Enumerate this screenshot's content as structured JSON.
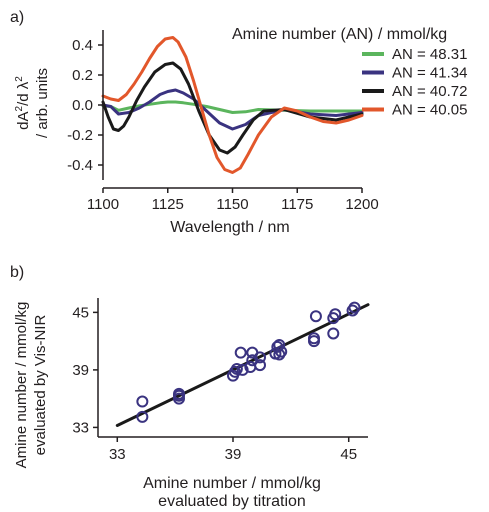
{
  "chart_data": [
    {
      "panel_label": "a)",
      "type": "line",
      "xlabel": "Wavelength / nm",
      "ylabel_line1": "dA",
      "ylabel_line1_sup1": "2",
      "ylabel_line1_mid": "/d λ",
      "ylabel_line1_sup2": "2",
      "ylabel_line2": "/ arb. units",
      "xlim": [
        1100,
        1200
      ],
      "ylim": [
        -0.5,
        0.5
      ],
      "xticks": [
        1100,
        1125,
        1150,
        1175,
        1200
      ],
      "yticks": [
        -0.4,
        -0.2,
        0.0,
        0.2,
        0.4
      ],
      "ytick_labels": [
        "-0.4",
        "-0.2",
        "0.0",
        "0.2",
        "0.4"
      ],
      "grid": false,
      "legend_title": "Amine number (AN) / mmol/kg",
      "legend_position": "top-right",
      "series": [
        {
          "name": "AN = 48.31",
          "color": "#5bb55d",
          "x": [
            1100,
            1103,
            1106,
            1110,
            1114,
            1118,
            1122,
            1125,
            1128,
            1131,
            1135,
            1140,
            1145,
            1150,
            1155,
            1160,
            1170,
            1180,
            1190,
            1200
          ],
          "y": [
            -0.005,
            -0.01,
            -0.035,
            -0.02,
            -0.005,
            0.005,
            0.015,
            0.02,
            0.02,
            0.015,
            0.005,
            -0.01,
            -0.03,
            -0.05,
            -0.045,
            -0.03,
            -0.035,
            -0.04,
            -0.04,
            -0.04
          ]
        },
        {
          "name": "AN = 41.34",
          "color": "#3a3380",
          "x": [
            1100,
            1103,
            1106,
            1110,
            1114,
            1118,
            1122,
            1125,
            1128,
            1131,
            1135,
            1140,
            1145,
            1150,
            1155,
            1160,
            1170,
            1180,
            1190,
            1200
          ],
          "y": [
            0.0,
            -0.01,
            -0.06,
            -0.05,
            -0.02,
            0.02,
            0.07,
            0.09,
            0.1,
            0.08,
            0.04,
            -0.04,
            -0.12,
            -0.16,
            -0.13,
            -0.07,
            -0.03,
            -0.06,
            -0.07,
            -0.05
          ]
        },
        {
          "name": "AN = 40.72",
          "color": "#1a1a1a",
          "x": [
            1100,
            1102,
            1104,
            1106,
            1108,
            1110,
            1113,
            1116,
            1120,
            1124,
            1127,
            1130,
            1133,
            1137,
            1141,
            1145,
            1148,
            1151,
            1154,
            1158,
            1162,
            1170,
            1180,
            1190,
            1200
          ],
          "y": [
            0.02,
            -0.08,
            -0.16,
            -0.17,
            -0.14,
            -0.08,
            0.03,
            0.12,
            0.22,
            0.27,
            0.28,
            0.24,
            0.14,
            -0.04,
            -0.2,
            -0.3,
            -0.32,
            -0.28,
            -0.2,
            -0.1,
            -0.04,
            -0.03,
            -0.08,
            -0.1,
            -0.06
          ]
        },
        {
          "name": "AN = 40.05",
          "color": "#e2572b",
          "x": [
            1100,
            1103,
            1106,
            1109,
            1112,
            1115,
            1118,
            1121,
            1124,
            1127,
            1129,
            1132,
            1135,
            1138,
            1141,
            1144,
            1147,
            1150,
            1153,
            1156,
            1160,
            1165,
            1170,
            1175,
            1180,
            1185,
            1190,
            1195,
            1200
          ],
          "y": [
            0.06,
            0.04,
            0.03,
            0.07,
            0.14,
            0.22,
            0.31,
            0.39,
            0.44,
            0.45,
            0.42,
            0.32,
            0.16,
            -0.02,
            -0.2,
            -0.35,
            -0.43,
            -0.45,
            -0.42,
            -0.33,
            -0.2,
            -0.08,
            -0.02,
            -0.04,
            -0.08,
            -0.11,
            -0.12,
            -0.1,
            -0.07
          ]
        }
      ]
    },
    {
      "panel_label": "b)",
      "type": "scatter",
      "xlabel_line1": "Amine number / mmol/kg",
      "xlabel_line2": "evaluated by titration",
      "ylabel_line1": "Amine number / mmol/kg",
      "ylabel_line2": "evaluated by Vis-NIR",
      "xlim": [
        32,
        46
      ],
      "ylim": [
        32,
        46.5
      ],
      "xticks": [
        33,
        39,
        45
      ],
      "yticks": [
        33,
        39,
        45
      ],
      "grid": false,
      "marker_color": "#3a3380",
      "fit_line": {
        "x": [
          33,
          46
        ],
        "y": [
          33.2,
          45.8
        ],
        "color": "#1a1a1a"
      },
      "points": [
        {
          "x": 34.3,
          "y": 35.7
        },
        {
          "x": 34.3,
          "y": 34.1
        },
        {
          "x": 36.2,
          "y": 36.5
        },
        {
          "x": 36.2,
          "y": 36.0
        },
        {
          "x": 36.2,
          "y": 36.3
        },
        {
          "x": 39.0,
          "y": 38.4
        },
        {
          "x": 39.1,
          "y": 38.8
        },
        {
          "x": 39.2,
          "y": 39.1
        },
        {
          "x": 39.4,
          "y": 40.8
        },
        {
          "x": 39.5,
          "y": 39.0
        },
        {
          "x": 39.9,
          "y": 39.3
        },
        {
          "x": 40.0,
          "y": 40.0
        },
        {
          "x": 40.0,
          "y": 40.8
        },
        {
          "x": 40.4,
          "y": 39.5
        },
        {
          "x": 40.4,
          "y": 40.3
        },
        {
          "x": 41.2,
          "y": 40.7
        },
        {
          "x": 41.3,
          "y": 41.4
        },
        {
          "x": 41.4,
          "y": 40.6
        },
        {
          "x": 41.4,
          "y": 41.6
        },
        {
          "x": 41.5,
          "y": 40.9
        },
        {
          "x": 43.2,
          "y": 42.0
        },
        {
          "x": 43.2,
          "y": 42.3
        },
        {
          "x": 43.3,
          "y": 44.6
        },
        {
          "x": 44.2,
          "y": 42.8
        },
        {
          "x": 44.2,
          "y": 44.4
        },
        {
          "x": 44.3,
          "y": 44.8
        },
        {
          "x": 45.2,
          "y": 45.2
        },
        {
          "x": 45.3,
          "y": 45.5
        }
      ]
    }
  ]
}
